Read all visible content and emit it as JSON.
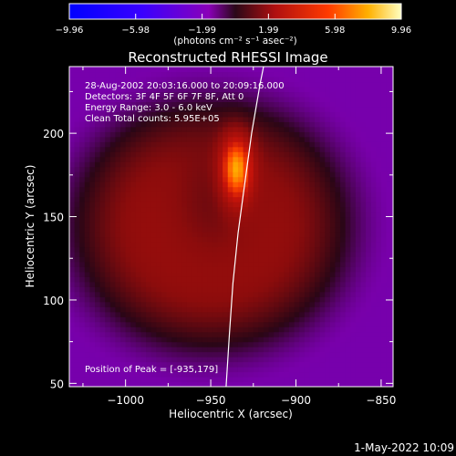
{
  "chart_data": {
    "type": "heatmap",
    "title": "Reconstructed RHESSI Image",
    "xlabel": "Heliocentric X (arcsec)",
    "ylabel": "Heliocentric Y (arcsec)",
    "xlim": [
      -1033,
      -843
    ],
    "ylim": [
      48,
      240
    ],
    "xticks": [
      -1000,
      -950,
      -900,
      -850
    ],
    "xtick_labels": [
      "−1000",
      "−950",
      "−900",
      "−850"
    ],
    "yticks": [
      50,
      100,
      150,
      200
    ],
    "ytick_labels": [
      "50",
      "100",
      "150",
      "200"
    ],
    "colorbar": {
      "colormap": "solar-heat",
      "range": [
        -9.96,
        9.96
      ],
      "ticks": [
        -9.96,
        -5.98,
        -1.99,
        1.99,
        5.98,
        9.96
      ],
      "tick_labels": [
        "−9.96",
        "−5.98",
        "−1.99",
        "1.99",
        "5.98",
        "9.96"
      ],
      "unit_label": "(photons cm⁻² s⁻¹ asec⁻²)"
    },
    "annotations": [
      "28-Aug-2002 20:03:16.000 to 20:09:16.000",
      "Detectors: 3F 4F 5F 6F 7F 8F, Att 0",
      "Energy Range: 3.0 - 6.0 keV",
      "Clean     Total counts: 5.95E+05"
    ],
    "peak_label": "Position of Peak = [-935,179]",
    "peak": {
      "x": -935,
      "y": 179
    },
    "emission_model": {
      "halo": {
        "x": -950,
        "y": 145,
        "rx": 78,
        "ry": 72,
        "amplitude": 0.42
      },
      "void": {
        "x": -948,
        "y": 160,
        "rx": 26,
        "ry": 36,
        "amplitude": -0.12
      },
      "peak_source": {
        "x": -935,
        "y": 179,
        "rx": 9,
        "ry": 20,
        "amplitude": 0.62
      }
    },
    "limb_curve": [
      {
        "x": -941,
        "y": 48
      },
      {
        "x": -939,
        "y": 80
      },
      {
        "x": -937,
        "y": 110
      },
      {
        "x": -934,
        "y": 140
      },
      {
        "x": -930,
        "y": 170
      },
      {
        "x": -926,
        "y": 200
      },
      {
        "x": -921,
        "y": 230
      },
      {
        "x": -919,
        "y": 240
      }
    ],
    "grid": false,
    "legend": "none"
  },
  "footer": {
    "timestamp": "1-May-2022 10:09"
  }
}
